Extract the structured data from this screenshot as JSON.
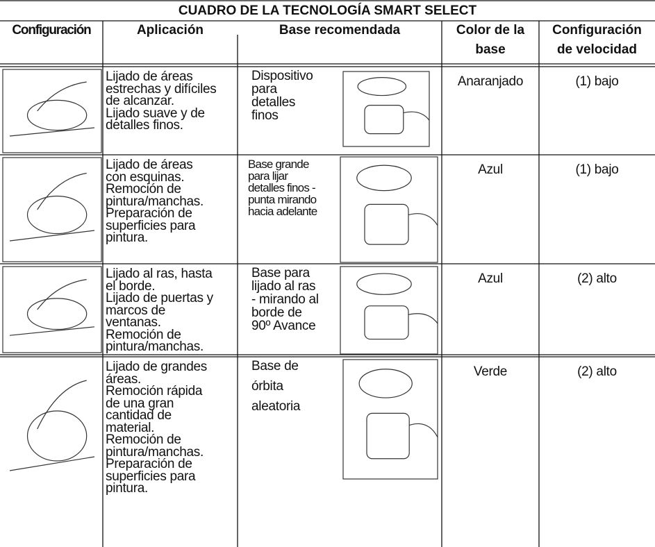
{
  "header": {
    "title": "CUADRO DE LA TECNOLOGÍA SMART SELECT",
    "columns": [
      [
        "Configuración"
      ],
      [
        "Aplicación"
      ],
      [
        "Base recomendada"
      ],
      [
        "Color de la",
        "base"
      ],
      [
        "Configuración",
        "de velocidad"
      ]
    ]
  },
  "table": {
    "rows": [
      {
        "application": [
          "Lijado de áreas",
          "estrechas y difíciles",
          "de alcanzar.",
          "Lijado suave y de",
          "detalles finos."
        ],
        "base": [
          "Dispositivo",
          "para",
          "detalles",
          "finos"
        ],
        "color": "Anaranjado",
        "speed": "(1) bajo"
      },
      {
        "application": [
          "Lijado de áreas",
          "con esquinas.",
          "Remoción de",
          "pintura/manchas.",
          "Preparación de",
          "superficies para",
          "pintura."
        ],
        "base": [
          "Base grande",
          "para lijar",
          "detalles finos -",
          "punta mirando",
          "hacia adelante"
        ],
        "color": "Azul",
        "speed": "(1) bajo"
      },
      {
        "application": [
          "Lijado al ras, hasta",
          "el borde.",
          "Lijado de puertas y",
          "marcos de",
          "ventanas.",
          "Remoción de",
          "pintura/manchas."
        ],
        "base": [
          "Base para",
          "lijado al ras",
          "- mirando al",
          "borde de",
          "90º Avance"
        ],
        "color": "Azul",
        "speed": "(2) alto"
      },
      {
        "application": [
          "Lijado de grandes",
          "áreas.",
          "Remoción rápida",
          "de una gran",
          "cantidad de",
          "material.",
          "Remoción de",
          "pintura/manchas.",
          "Preparación de",
          "superficies para",
          "pintura."
        ],
        "base": [
          "Base de",
          "órbita",
          "aleatoria"
        ],
        "color": "Verde",
        "speed": "(2) alto"
      }
    ]
  }
}
